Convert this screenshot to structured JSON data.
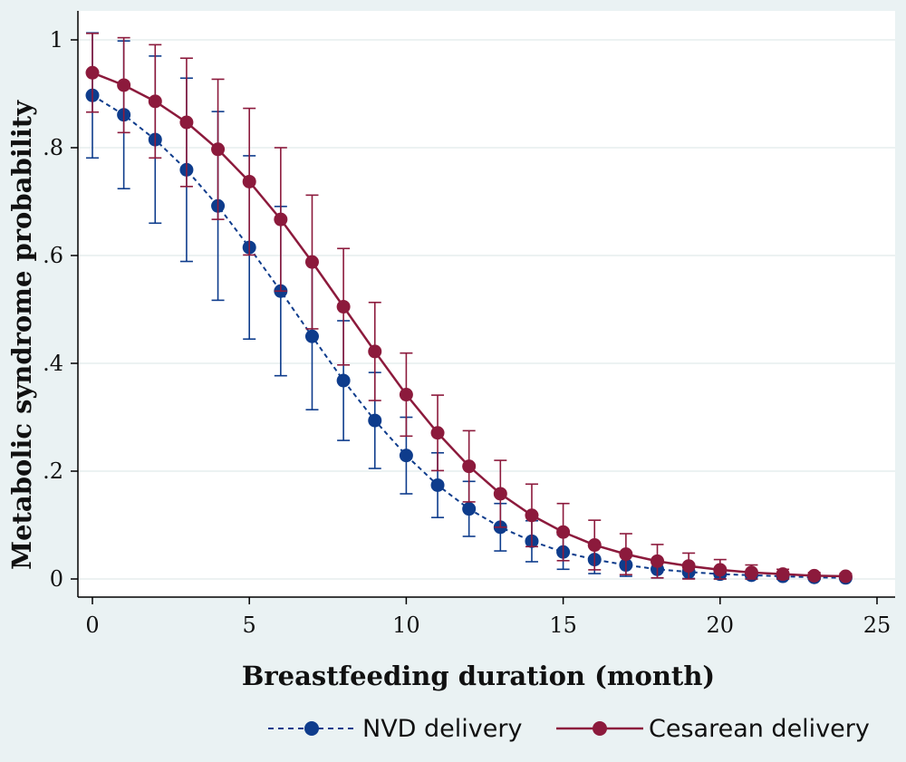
{
  "chart_data": {
    "type": "line",
    "title": "",
    "xlabel": "Breastfeeding duration (month)",
    "ylabel": "Metabolic syndrome probability",
    "xlim": [
      0,
      25
    ],
    "ylim": [
      0,
      1
    ],
    "x_ticks": [
      "0",
      "5",
      "10",
      "15",
      "20",
      "25"
    ],
    "y_ticks": [
      "0",
      ".2",
      ".4",
      ".6",
      ".8",
      "1"
    ],
    "grid": "horizontal",
    "legend_position": "bottom",
    "x": [
      0,
      1,
      2,
      3,
      4,
      5,
      6,
      7,
      8,
      9,
      10,
      11,
      12,
      13,
      14,
      15,
      16,
      17,
      18,
      19,
      20,
      21,
      22,
      23,
      24
    ],
    "series": [
      {
        "name": "NVD delivery",
        "color": "#0e3c8c",
        "line_style": "dashed",
        "marker": "circle",
        "values": [
          0.897,
          0.861,
          0.815,
          0.759,
          0.692,
          0.615,
          0.534,
          0.45,
          0.368,
          0.294,
          0.229,
          0.174,
          0.13,
          0.096,
          0.07,
          0.05,
          0.036,
          0.026,
          0.018,
          0.013,
          0.009,
          0.007,
          0.005,
          0.003,
          0.002
        ],
        "lower": [
          0.781,
          0.724,
          0.66,
          0.589,
          0.517,
          0.445,
          0.377,
          0.314,
          0.257,
          0.205,
          0.158,
          0.114,
          0.079,
          0.052,
          0.032,
          0.018,
          0.01,
          0.005,
          0.002,
          0.001,
          0.0,
          0.0,
          0.0,
          0.0,
          0.0
        ],
        "upper": [
          1.013,
          0.998,
          0.97,
          0.929,
          0.867,
          0.785,
          0.691,
          0.586,
          0.479,
          0.383,
          0.3,
          0.234,
          0.181,
          0.14,
          0.108,
          0.082,
          0.062,
          0.047,
          0.034,
          0.025,
          0.018,
          0.014,
          0.01,
          0.007,
          0.005
        ]
      },
      {
        "name": "Cesarean delivery",
        "color": "#8c1a3c",
        "line_style": "solid",
        "marker": "circle",
        "values": [
          0.939,
          0.916,
          0.886,
          0.847,
          0.797,
          0.737,
          0.667,
          0.588,
          0.505,
          0.422,
          0.342,
          0.271,
          0.209,
          0.158,
          0.118,
          0.087,
          0.063,
          0.046,
          0.033,
          0.024,
          0.017,
          0.012,
          0.009,
          0.006,
          0.005
        ],
        "lower": [
          0.866,
          0.828,
          0.781,
          0.728,
          0.667,
          0.601,
          0.534,
          0.464,
          0.397,
          0.331,
          0.265,
          0.201,
          0.143,
          0.096,
          0.06,
          0.034,
          0.017,
          0.008,
          0.002,
          0.0,
          0.0,
          0.0,
          0.0,
          0.0,
          0.0
        ],
        "upper": [
          1.012,
          1.004,
          0.991,
          0.966,
          0.927,
          0.873,
          0.8,
          0.712,
          0.613,
          0.513,
          0.419,
          0.341,
          0.275,
          0.22,
          0.176,
          0.14,
          0.109,
          0.084,
          0.064,
          0.048,
          0.036,
          0.026,
          0.018,
          0.012,
          0.01
        ]
      }
    ]
  }
}
